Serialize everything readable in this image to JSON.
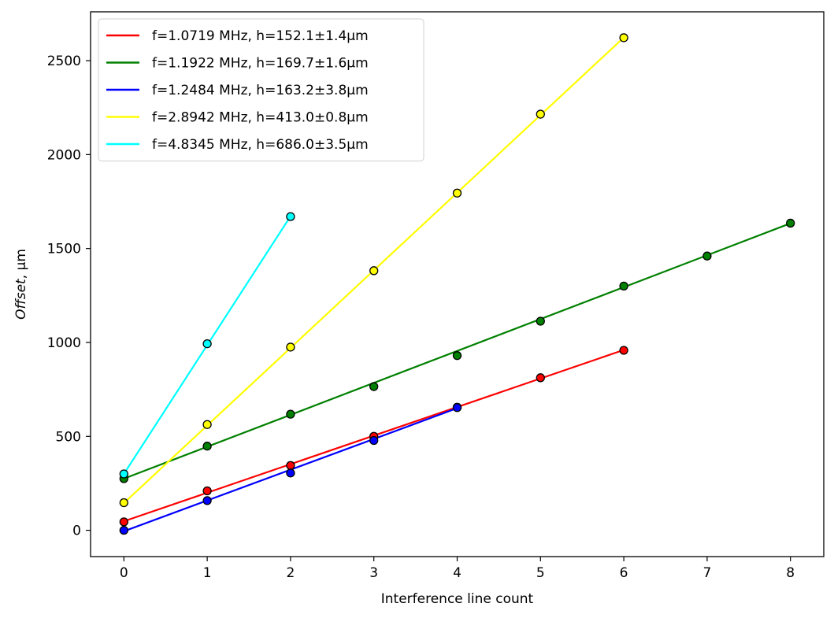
{
  "chart_data": {
    "type": "scatter",
    "title": "",
    "xlabel": "Interference line count",
    "ylabel": {
      "italic": "Offset",
      "rest": ",  μm"
    },
    "xlim": [
      -0.4,
      8.4
    ],
    "ylim": [
      -140,
      2760
    ],
    "xticks": [
      0,
      1,
      2,
      3,
      4,
      5,
      6,
      7,
      8
    ],
    "yticks": [
      0,
      500,
      1000,
      1500,
      2000,
      2500
    ],
    "grid": false,
    "legend_position": "top-left",
    "series": [
      {
        "name": "f=1.0719 MHz, h=152.1±1.4μm",
        "color": "#ff0000",
        "x": [
          0,
          1,
          2,
          3,
          4,
          5,
          6
        ],
        "y": [
          45,
          210,
          345,
          500,
          655,
          812,
          958
        ],
        "fit": {
          "x": [
            0,
            6
          ],
          "y": [
            48,
            960
          ]
        }
      },
      {
        "name": "f=1.1922 MHz, h=169.7±1.6μm",
        "color": "#008000",
        "x": [
          0,
          1,
          2,
          3,
          4,
          5,
          6,
          7,
          8
        ],
        "y": [
          275,
          448,
          618,
          765,
          930,
          1113,
          1300,
          1460,
          1635
        ],
        "fit": {
          "x": [
            0,
            8
          ],
          "y": [
            275,
            1634
          ]
        }
      },
      {
        "name": "f=1.2484 MHz, h=163.2±3.8μm",
        "color": "#0000ff",
        "x": [
          0,
          1,
          2,
          3,
          4
        ],
        "y": [
          0,
          158,
          305,
          478,
          653
        ],
        "fit": {
          "x": [
            0,
            4
          ],
          "y": [
            -5,
            650
          ]
        }
      },
      {
        "name": "f=2.8942 MHz, h=413.0±0.8μm",
        "color": "#ffff00",
        "x": [
          0,
          1,
          2,
          3,
          4,
          5,
          6
        ],
        "y": [
          147,
          563,
          975,
          1382,
          1795,
          2215,
          2622
        ],
        "fit": {
          "x": [
            0,
            6
          ],
          "y": [
            145,
            2623
          ]
        }
      },
      {
        "name": "f=4.8345 MHz, h=686.0±3.5μm",
        "color": "#00ffff",
        "x": [
          0,
          1,
          2
        ],
        "y": [
          300,
          993,
          1670
        ],
        "fit": {
          "x": [
            0,
            2
          ],
          "y": [
            300,
            1672
          ]
        }
      }
    ]
  }
}
